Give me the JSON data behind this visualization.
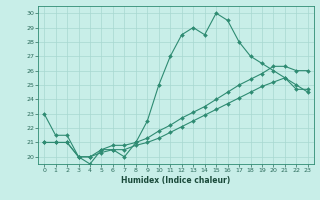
{
  "xlabel": "Humidex (Indice chaleur)",
  "color": "#2e8b72",
  "bg_color": "#c8eee8",
  "grid_color": "#a8d8d0",
  "yticks": [
    20,
    21,
    22,
    23,
    24,
    25,
    26,
    27,
    28,
    29,
    30
  ],
  "xticks": [
    0,
    1,
    2,
    3,
    4,
    5,
    6,
    7,
    8,
    9,
    10,
    11,
    12,
    13,
    14,
    15,
    16,
    17,
    18,
    19,
    20,
    21,
    22,
    23
  ],
  "markersize": 2.0,
  "linewidth": 0.8,
  "line_spiky_x": [
    0,
    1,
    2,
    3,
    4,
    5,
    6,
    7,
    8,
    9,
    10,
    11,
    12,
    13,
    14,
    15,
    16,
    17,
    18,
    19,
    20,
    21,
    22,
    23
  ],
  "line_spiky_y": [
    23,
    21.5,
    21.5,
    20,
    19.5,
    20.5,
    20.5,
    20,
    21,
    22.5,
    25,
    27,
    28.5,
    29,
    28.5,
    30,
    29.5,
    28,
    27.0,
    26.5,
    26.0,
    25.5,
    25.0,
    24.5
  ],
  "line_upper_x": [
    0,
    1,
    2,
    3,
    4,
    5,
    6,
    7,
    8,
    9,
    10,
    11,
    12,
    13,
    14,
    15,
    16,
    17,
    18,
    19,
    20,
    21,
    22,
    23
  ],
  "line_upper_y": [
    21.0,
    21.0,
    21.0,
    20.0,
    20.0,
    20.5,
    20.8,
    20.8,
    21.0,
    21.3,
    21.8,
    22.2,
    22.7,
    23.1,
    23.5,
    24.0,
    24.5,
    25.0,
    25.4,
    25.8,
    26.3,
    26.3,
    26.0,
    26.0
  ],
  "line_lower_x": [
    0,
    1,
    2,
    3,
    4,
    5,
    6,
    7,
    8,
    9,
    10,
    11,
    12,
    13,
    14,
    15,
    16,
    17,
    18,
    19,
    20,
    21,
    22,
    23
  ],
  "line_lower_y": [
    21.0,
    21.0,
    21.0,
    20.0,
    20.0,
    20.3,
    20.5,
    20.5,
    20.8,
    21.0,
    21.3,
    21.7,
    22.1,
    22.5,
    22.9,
    23.3,
    23.7,
    24.1,
    24.5,
    24.9,
    25.2,
    25.5,
    24.7,
    24.7
  ]
}
